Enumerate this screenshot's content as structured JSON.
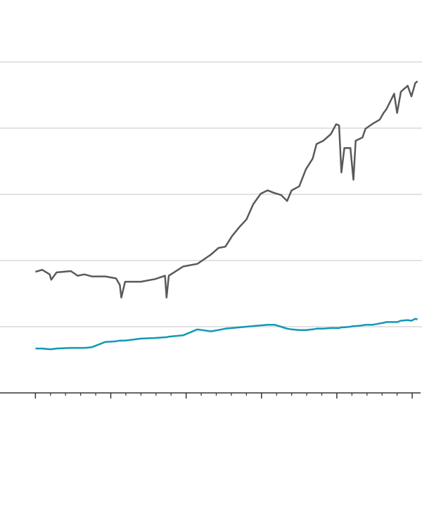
{
  "chart_data": {
    "type": "line",
    "x": [
      0,
      0.09,
      0.19,
      0.21,
      0.28,
      0.47,
      0.56,
      0.65,
      0.75,
      0.93,
      1.07,
      1.12,
      1.14,
      1.19,
      1.4,
      1.59,
      1.72,
      1.74,
      1.77,
      1.96,
      2.15,
      2.33,
      2.43,
      2.52,
      2.61,
      2.71,
      2.8,
      2.89,
      2.99,
      3.08,
      3.17,
      3.26,
      3.34,
      3.4,
      3.5,
      3.59,
      3.68,
      3.73,
      3.82,
      3.92,
      3.99,
      4.03,
      4.06,
      4.1,
      4.18,
      4.22,
      4.25,
      4.34,
      4.38,
      4.48,
      4.57,
      4.62,
      4.66,
      4.76,
      4.8,
      4.85,
      4.94,
      4.99,
      5.04,
      5.07
    ],
    "series": [
      {
        "color": "#5a5a5a",
        "values": [
          1.83,
          1.86,
          1.79,
          1.71,
          1.82,
          1.84,
          1.77,
          1.79,
          1.76,
          1.76,
          1.73,
          1.63,
          1.44,
          1.68,
          1.68,
          1.72,
          1.77,
          1.44,
          1.77,
          1.91,
          1.95,
          2.09,
          2.19,
          2.21,
          2.37,
          2.51,
          2.62,
          2.85,
          3.01,
          3.06,
          3.02,
          2.99,
          2.9,
          3.06,
          3.12,
          3.38,
          3.54,
          3.76,
          3.81,
          3.91,
          4.06,
          4.04,
          3.33,
          3.7,
          3.7,
          3.22,
          3.81,
          3.86,
          3.99,
          4.07,
          4.13,
          4.23,
          4.29,
          4.52,
          4.23,
          4.55,
          4.64,
          4.48,
          4.68,
          4.71
        ]
      },
      {
        "color": "#1199b3",
        "values": [
          0.67,
          0.67,
          0.66,
          0.66,
          0.67,
          0.68,
          0.68,
          0.68,
          0.69,
          0.77,
          0.78,
          0.79,
          0.79,
          0.79,
          0.82,
          0.83,
          0.84,
          0.84,
          0.85,
          0.87,
          0.96,
          0.93,
          0.95,
          0.97,
          0.98,
          0.99,
          1.0,
          1.01,
          1.02,
          1.03,
          1.03,
          1.0,
          0.97,
          0.96,
          0.95,
          0.95,
          0.96,
          0.97,
          0.97,
          0.98,
          0.98,
          0.98,
          0.99,
          0.99,
          1.0,
          1.01,
          1.01,
          1.02,
          1.03,
          1.03,
          1.05,
          1.06,
          1.07,
          1.07,
          1.07,
          1.09,
          1.1,
          1.09,
          1.12,
          1.11
        ]
      }
    ],
    "xlim": [
      -0.47,
      5.13
    ],
    "xticks": [
      0,
      1,
      2,
      3,
      4,
      5
    ],
    "xminorticks": [
      0.2,
      0.4,
      0.6,
      0.8,
      1.2,
      1.4,
      1.6,
      1.8,
      2.2,
      2.4,
      2.6,
      2.8,
      3.2,
      3.4,
      3.6,
      3.8,
      4.2,
      4.4,
      4.6,
      4.8
    ],
    "ylim": [
      0,
      5
    ],
    "yticks": [
      1,
      2,
      3,
      4,
      5
    ],
    "grid": true
  }
}
